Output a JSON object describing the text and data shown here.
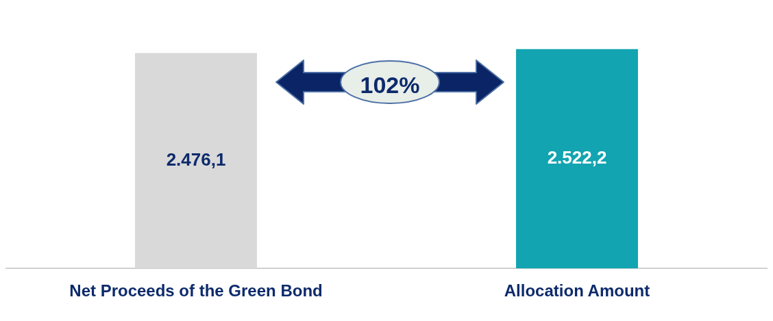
{
  "chart_data": {
    "type": "bar",
    "categories": [
      "Net Proceeds of the Green Bond",
      "Allocation Amount"
    ],
    "values": [
      2476.1,
      2522.2
    ],
    "colors": [
      "#d9d9d9",
      "#12a4b0"
    ],
    "value_labels": [
      "2.476,1",
      "2.522,2"
    ],
    "grid": false,
    "legend": false,
    "annotations": [
      "102%"
    ]
  }
}
